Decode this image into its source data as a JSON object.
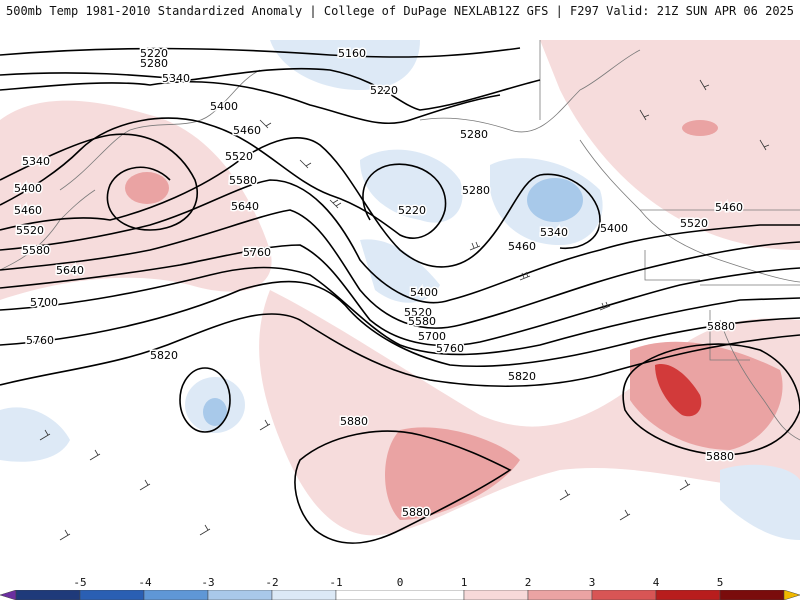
{
  "title": {
    "left": "500mb Temp 1981-2010 Standardized Anomaly | College of DuPage NEXLAB",
    "right": "12Z GFS | F297 Valid: 21Z SUN APR 06 2025"
  },
  "contour_labels": [
    "5160",
    "5220",
    "5280",
    "5340",
    "5400",
    "5460",
    "5520",
    "5580",
    "5640",
    "5700",
    "5760",
    "5820",
    "5880"
  ],
  "colorbar": {
    "labels": [
      "-5",
      "-4",
      "-3",
      "-2",
      "-1",
      "0",
      "1",
      "2",
      "3",
      "4",
      "5"
    ],
    "colors": [
      "#6b2fa0",
      "#1f3a7a",
      "#2a5fb3",
      "#5f97d6",
      "#a9c8ea",
      "#dce9f6",
      "#ffffff",
      "#f7d9d9",
      "#eba3a3",
      "#d85555",
      "#b81d1d",
      "#7a0c0c",
      "#f0b800"
    ]
  },
  "map_colors": {
    "warm_light": "#f6dcdc",
    "warm_mid": "#eaa3a3",
    "warm_strong": "#d23a3a",
    "cool_light": "#dde9f6",
    "cool_mid": "#a8c9ea",
    "contour": "#000000",
    "border": "#7a7a7a"
  }
}
